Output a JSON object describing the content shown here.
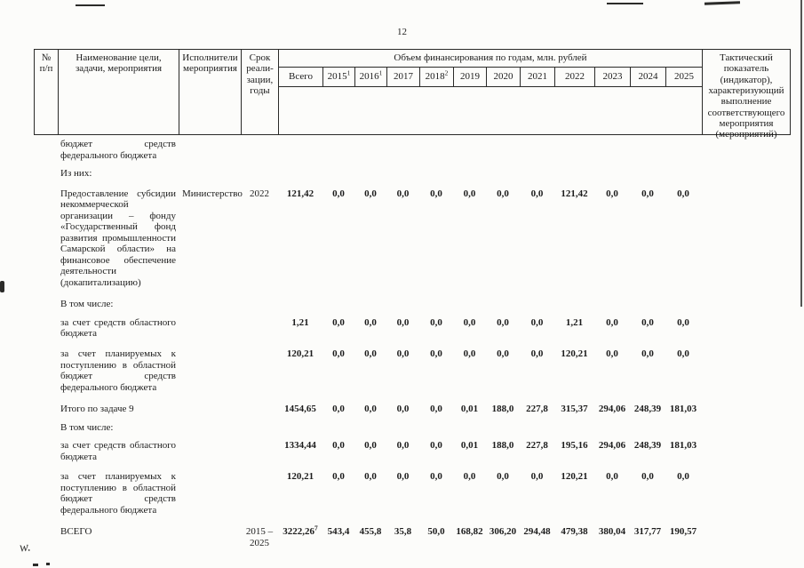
{
  "page": {
    "number": "12"
  },
  "artifacts": {
    "handwriting": "w."
  },
  "table": {
    "header": {
      "col_num": "№ п/п",
      "col_name": "Наименование цели, задачи, мероприятия",
      "col_executor": "Исполнители мероприятия",
      "col_term": "Срок реали­зации, годы",
      "col_funding_group": "Объем финансирования по годам, млн. рублей",
      "col_total": "Всего",
      "years": [
        {
          "label": "2015",
          "sup": "1"
        },
        {
          "label": "2016",
          "sup": "1"
        },
        {
          "label": "2017",
          "sup": ""
        },
        {
          "label": "2018",
          "sup": "2"
        },
        {
          "label": "2019",
          "sup": ""
        },
        {
          "label": "2020",
          "sup": ""
        },
        {
          "label": "2021",
          "sup": ""
        },
        {
          "label": "2022",
          "sup": ""
        },
        {
          "label": "2023",
          "sup": ""
        },
        {
          "label": "2024",
          "sup": ""
        },
        {
          "label": "2025",
          "sup": ""
        }
      ],
      "col_indicator": "Тактический показатель (индикатор), характеризующий выполнение соответствующего мероприятия (мероприятий)"
    },
    "rows": [
      {
        "num": "",
        "name": "бюджет средств федерального бюджета",
        "executor": "",
        "term": "",
        "total": "",
        "total_sup": "",
        "years": [],
        "indicator": "",
        "style": "text"
      },
      {
        "num": "",
        "name": "Из них:",
        "executor": "",
        "term": "",
        "total": "",
        "total_sup": "",
        "years": [],
        "indicator": "",
        "style": "label"
      },
      {
        "num": "",
        "name": "Предоставление субсидии некоммерческой организации – фонду «Государственный фонд развития промышленности Самарской области» на финансовое обеспечение деятельности (докапитализацию)",
        "executor": "Министерство",
        "term": "2022",
        "total": "121,42",
        "total_sup": "",
        "years": [
          "0,0",
          "0,0",
          "0,0",
          "0,0",
          "0,0",
          "0,0",
          "0,0",
          "121,42",
          "0,0",
          "0,0",
          "0,0"
        ],
        "indicator": "",
        "style": "text"
      },
      {
        "num": "",
        "name": "В том числе:",
        "executor": "",
        "term": "",
        "total": "",
        "total_sup": "",
        "years": [],
        "indicator": "",
        "style": "label"
      },
      {
        "num": "",
        "name": "за счет средств областного бюджета",
        "executor": "",
        "term": "",
        "total": "1,21",
        "total_sup": "",
        "years": [
          "0,0",
          "0,0",
          "0,0",
          "0,0",
          "0,0",
          "0,0",
          "0,0",
          "1,21",
          "0,0",
          "0,0",
          "0,0"
        ],
        "indicator": "",
        "style": "text"
      },
      {
        "num": "",
        "name": "за счет планируемых к поступлению в областной бюджет средств федерального бюджета",
        "executor": "",
        "term": "",
        "total": "120,21",
        "total_sup": "",
        "years": [
          "0,0",
          "0,0",
          "0,0",
          "0,0",
          "0,0",
          "0,0",
          "0,0",
          "120,21",
          "0,0",
          "0,0",
          "0,0"
        ],
        "indicator": "",
        "style": "text"
      },
      {
        "num": "",
        "name": "Итого по задаче 9",
        "executor": "",
        "term": "",
        "total": "1454,65",
        "total_sup": "",
        "years": [
          "0,0",
          "0,0",
          "0,0",
          "0,0",
          "0,01",
          "188,0",
          "227,8",
          "315,37",
          "294,06",
          "248,39",
          "181,03"
        ],
        "indicator": "",
        "style": "text"
      },
      {
        "num": "",
        "name": "В том числе:",
        "executor": "",
        "term": "",
        "total": "",
        "total_sup": "",
        "years": [],
        "indicator": "",
        "style": "label"
      },
      {
        "num": "",
        "name": "за счет средств областного бюджета",
        "executor": "",
        "term": "",
        "total": "1334,44",
        "total_sup": "",
        "years": [
          "0,0",
          "0,0",
          "0,0",
          "0,0",
          "0,01",
          "188,0",
          "227,8",
          "195,16",
          "294,06",
          "248,39",
          "181,03"
        ],
        "indicator": "",
        "style": "text"
      },
      {
        "num": "",
        "name": "за счет планируемых к поступлению в областной бюджет средств федерального бюджета",
        "executor": "",
        "term": "",
        "total": "120,21",
        "total_sup": "",
        "years": [
          "0,0",
          "0,0",
          "0,0",
          "0,0",
          "0,0",
          "0,0",
          "0,0",
          "120,21",
          "0,0",
          "0,0",
          "0,0"
        ],
        "indicator": "",
        "style": "text"
      },
      {
        "num": "",
        "name": "ВСЕГО",
        "executor": "",
        "term": "2015 –\n2025",
        "total": "3222,26",
        "total_sup": "7",
        "years": [
          "543,4",
          "455,8",
          "35,8",
          "50,0",
          "168,82",
          "306,20",
          "294,48",
          "479,38",
          "380,04",
          "317,77",
          "190,57"
        ],
        "indicator": "",
        "style": "caps"
      }
    ]
  }
}
